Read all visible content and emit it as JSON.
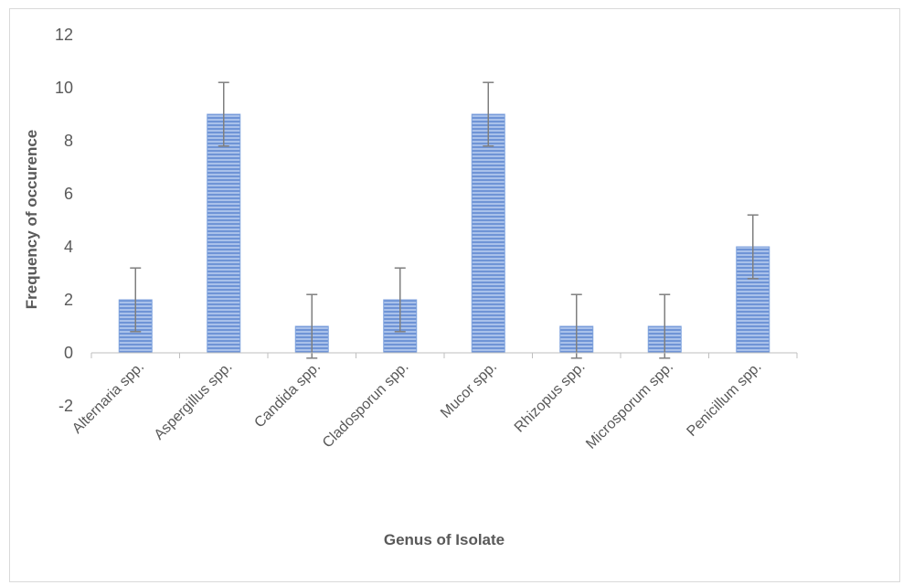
{
  "chart_data": {
    "type": "bar",
    "title": "",
    "xlabel": "Genus of Isolate",
    "ylabel": "Frequency of occurence",
    "categories": [
      "Alternaria spp.",
      "Aspergillus spp.",
      "Candida spp.",
      "Cladosporun spp.",
      "Mucor spp.",
      "Rhizopus spp.",
      "Microsporum spp.",
      "Penicillum spp."
    ],
    "values": [
      2,
      9,
      1,
      2,
      9,
      1,
      1,
      4
    ],
    "error": [
      1.2,
      1.2,
      1.2,
      1.2,
      1.2,
      1.2,
      1.2,
      1.2
    ],
    "ylim": [
      -2,
      12
    ],
    "yticks": [
      "-2",
      "0",
      "2",
      "4",
      "6",
      "8",
      "10",
      "12"
    ],
    "grid": false,
    "legend": "none",
    "bar_color": "#6f94d6",
    "bar_stripe_color": "#a9c1ea",
    "error_bar_color": "#7f7f7f"
  }
}
